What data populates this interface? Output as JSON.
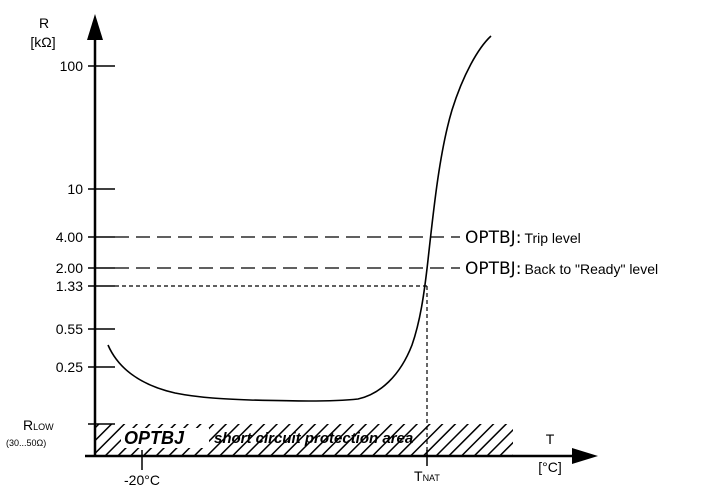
{
  "chart_data": {
    "type": "line",
    "y_axis": {
      "label": "R",
      "unit": "[kΩ]"
    },
    "x_axis": {
      "label": "T",
      "unit": "[°C]"
    },
    "y_ticks": [
      "100",
      "10",
      "4.00",
      "2.00",
      "1.33",
      "0.55",
      "0.25"
    ],
    "r_low": {
      "label_main": "R",
      "label_sub": "LOW",
      "range": "(30...50Ω)"
    },
    "x_ticks": [
      {
        "label": "-20°C"
      },
      {
        "label_main": "T",
        "label_sub": "NAT"
      }
    ],
    "annotations": [
      {
        "code": "OPTBJ",
        "sep": ":",
        "text": "Trip level",
        "level": "4.00"
      },
      {
        "code": "OPTBJ",
        "sep": ":",
        "text": "Back to \"Ready\" level",
        "level": "2.00"
      }
    ],
    "hatched_area": {
      "code": "OPTBJ",
      "text": "short circuit protection area"
    },
    "curve": "PTC thermistor resistance vs temperature"
  }
}
